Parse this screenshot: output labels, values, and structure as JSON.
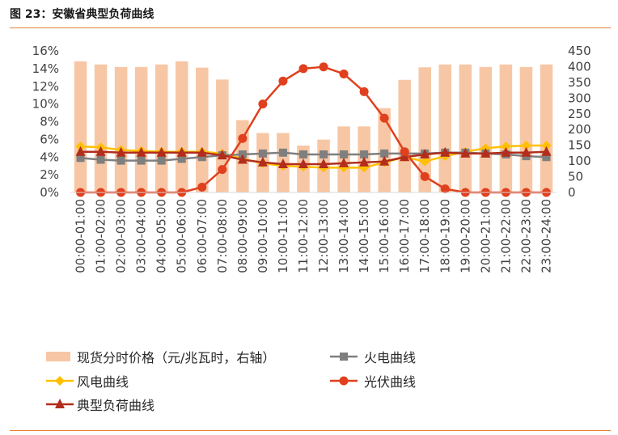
{
  "figure_title": "图 23：安徽省典型负荷曲线",
  "colors": {
    "bar": "#f7c7a5",
    "thermal": "#7f7f7f",
    "wind": "#ffc000",
    "solar": "#e0401e",
    "load": "#b22d1c",
    "rule": "#e2803a"
  },
  "chart_data": {
    "type": "bar+line",
    "categories": [
      "00:00-01:00",
      "01:00-02:00",
      "02:00-03:00",
      "03:00-04:00",
      "04:00-05:00",
      "05:00-06:00",
      "06:00-07:00",
      "07:00-08:00",
      "08:00-09:00",
      "09:00-10:00",
      "10:00-11:00",
      "11:00-12:00",
      "12:00-13:00",
      "13:00-14:00",
      "14:00-15:00",
      "15:00-16:00",
      "16:00-17:00",
      "17:00-18:00",
      "18:00-19:00",
      "19:00-20:00",
      "20:00-21:00",
      "21:00-22:00",
      "22:00-23:00",
      "23:00-24:00"
    ],
    "y_left": {
      "ticks": [
        "0%",
        "2%",
        "4%",
        "6%",
        "8%",
        "10%",
        "12%",
        "14%",
        "16%"
      ],
      "min": 0,
      "max": 16
    },
    "y_right": {
      "ticks": [
        "0",
        "50",
        "100",
        "150",
        "200",
        "250",
        "300",
        "350",
        "400",
        "450"
      ],
      "min": 0,
      "max": 450
    },
    "bar_series": {
      "name": "现货分时价格（元/兆瓦时，右轴）",
      "axis": "right",
      "values": [
        417,
        407,
        399,
        399,
        407,
        417,
        397,
        359,
        230,
        189,
        189,
        149,
        168,
        210,
        210,
        268,
        358,
        398,
        407,
        407,
        399,
        407,
        399,
        407
      ]
    },
    "line_series": [
      {
        "name": "火电曲线",
        "axis": "left",
        "marker": "square",
        "values": [
          3.9,
          3.7,
          3.6,
          3.6,
          3.6,
          3.8,
          4.0,
          4.2,
          4.3,
          4.4,
          4.5,
          4.3,
          4.3,
          4.3,
          4.3,
          4.4,
          4.4,
          4.4,
          4.5,
          4.5,
          4.4,
          4.3,
          4.1,
          4.0
        ]
      },
      {
        "name": "风电曲线",
        "axis": "left",
        "marker": "diamond",
        "values": [
          5.2,
          5.1,
          4.8,
          4.7,
          4.6,
          4.6,
          4.6,
          4.4,
          3.8,
          3.3,
          3.0,
          2.9,
          2.8,
          2.8,
          2.8,
          3.4,
          4.0,
          3.5,
          4.1,
          4.6,
          5.0,
          5.2,
          5.3,
          5.3
        ]
      },
      {
        "name": "光伏曲线",
        "axis": "left",
        "marker": "circle",
        "values": [
          0,
          0,
          0,
          0,
          0,
          0,
          0.6,
          2.6,
          6.1,
          10.0,
          12.6,
          14.0,
          14.2,
          13.4,
          11.4,
          8.4,
          4.6,
          1.8,
          0.4,
          0,
          0,
          0,
          0,
          0
        ]
      },
      {
        "name": "典型负荷曲线",
        "axis": "left",
        "marker": "triangle",
        "values": [
          4.6,
          4.6,
          4.5,
          4.5,
          4.5,
          4.5,
          4.5,
          4.2,
          3.7,
          3.4,
          3.2,
          3.2,
          3.2,
          3.3,
          3.4,
          3.5,
          4.0,
          4.3,
          4.5,
          4.4,
          4.4,
          4.5,
          4.5,
          4.6
        ]
      }
    ],
    "legend": {
      "position": "bottom",
      "labels": [
        "现货分时价格（元/兆瓦时，右轴）",
        "火电曲线",
        "风电曲线",
        "光伏曲线",
        "典型负荷曲线"
      ]
    }
  }
}
